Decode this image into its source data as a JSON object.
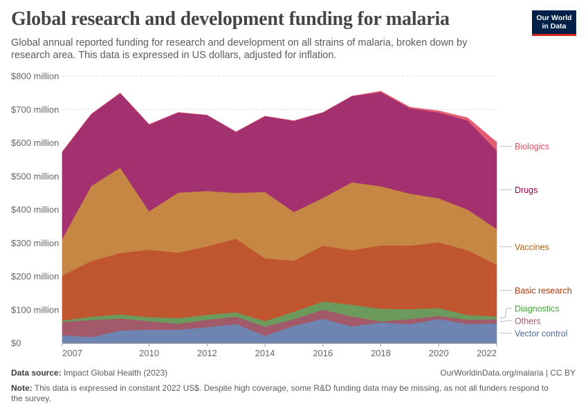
{
  "header": {
    "title": "Global research and development funding for malaria",
    "subtitle": "Global annual reported funding for research and development on all strains of malaria, broken down by research area. This data is expressed in US dollars, adjusted for inflation.",
    "logo_line1": "Our World",
    "logo_line2": "in Data"
  },
  "footer": {
    "source_label": "Data source:",
    "source_text": "Impact Global Health (2023)",
    "credit": "OurWorldinData.org/malaria | CC BY",
    "note_label": "Note:",
    "note_text": "This data is expressed in constant 2022 US$. Despite high coverage, some R&D funding data may be missing, as not all funders respond to the survey."
  },
  "chart_data": {
    "type": "area",
    "stacked": true,
    "x": [
      2007,
      2008,
      2009,
      2010,
      2011,
      2012,
      2013,
      2014,
      2015,
      2016,
      2017,
      2018,
      2019,
      2020,
      2021,
      2022
    ],
    "x_ticks": [
      2007,
      2010,
      2012,
      2014,
      2016,
      2018,
      2020,
      2022
    ],
    "x_tick_labels": [
      "2007",
      "2010",
      "2012",
      "2014",
      "2016",
      "2018",
      "2020",
      "2022"
    ],
    "y_ticks": [
      0,
      100,
      200,
      300,
      400,
      500,
      600,
      700,
      800
    ],
    "y_tick_labels": [
      "$0",
      "$100 million",
      "$200 million",
      "$300 million",
      "$400 million",
      "$500 million",
      "$600 million",
      "$700 million",
      "$800 million"
    ],
    "ylim": [
      0,
      800
    ],
    "unit": "million US$ (constant 2022)",
    "grid": true,
    "legend_position": "right",
    "series": [
      {
        "name": "Vector control",
        "color": "#6d85b0",
        "label_color": "#4c6a9c",
        "values": [
          24,
          18,
          38,
          40,
          40,
          48,
          57,
          22,
          52,
          73,
          50,
          62,
          57,
          72,
          57,
          59
        ]
      },
      {
        "name": "Others",
        "color": "#a2596a",
        "label_color": "#a2596a",
        "values": [
          40,
          51,
          36,
          26,
          18,
          22,
          22,
          27,
          20,
          27,
          30,
          3,
          15,
          10,
          13,
          12
        ]
      },
      {
        "name": "Diagnostics",
        "color": "#6c9a5c",
        "label_color": "#38aa2f",
        "values": [
          4,
          10,
          12,
          12,
          17,
          15,
          13,
          17,
          22,
          25,
          35,
          38,
          30,
          23,
          14,
          9
        ]
      },
      {
        "name": "Basic research",
        "color": "#c0562f",
        "label_color": "#b13507",
        "values": [
          135,
          167,
          184,
          202,
          196,
          205,
          221,
          188,
          153,
          167,
          163,
          190,
          190,
          197,
          194,
          155
        ]
      },
      {
        "name": "Vaccines",
        "color": "#c68644",
        "label_color": "#b16214",
        "values": [
          110,
          225,
          256,
          115,
          180,
          166,
          137,
          199,
          146,
          143,
          204,
          177,
          156,
          132,
          122,
          107
        ]
      },
      {
        "name": "Drugs",
        "color": "#a3316f",
        "label_color": "#970046",
        "values": [
          260,
          215,
          223,
          260,
          240,
          227,
          183,
          227,
          273,
          256,
          258,
          282,
          256,
          257,
          267,
          235
        ]
      },
      {
        "name": "Biologics",
        "color": "#e35d73",
        "label_color": "#e04e62",
        "values": [
          0,
          0,
          0,
          0,
          0,
          0,
          0,
          0,
          0,
          0,
          0,
          3,
          3,
          5,
          8,
          25
        ]
      }
    ]
  }
}
